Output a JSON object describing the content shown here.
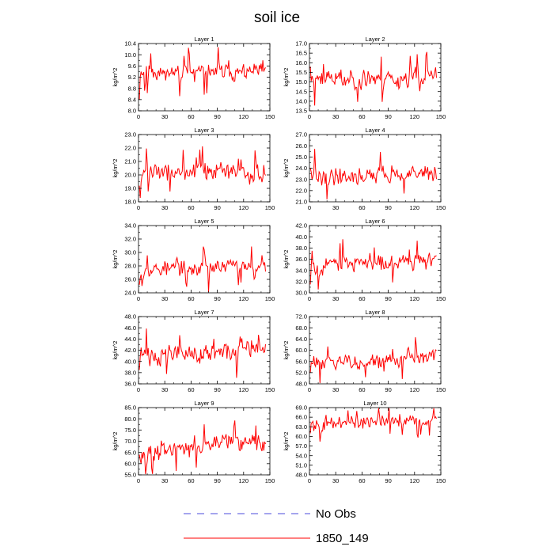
{
  "title": "soil ice",
  "colors": {
    "series": "#ff0000",
    "noobs": "#4b4bdc",
    "axis": "#000000"
  },
  "legend": {
    "entries": [
      {
        "label": "No Obs",
        "style": "dashed",
        "color": "#4b4bdc"
      },
      {
        "label": "1850_149",
        "style": "solid",
        "color": "#ff0000"
      }
    ]
  },
  "chart_data": [
    {
      "type": "line",
      "title": "Layer 1",
      "ylabel": "kg/m^2",
      "xlim": [
        0,
        150
      ],
      "xticks": [
        0,
        30,
        60,
        90,
        120,
        150
      ],
      "ylim": [
        8.0,
        10.4
      ],
      "yticks": [
        "8.0",
        "8.4",
        "8.8",
        "9.2",
        "9.6",
        "10.0",
        "10.4"
      ],
      "n": 145,
      "mean": 9.4,
      "amp": 0.45,
      "trend": 0.0,
      "seed": 11,
      "start": 8.4,
      "series": [
        {
          "name": "1850_149"
        }
      ]
    },
    {
      "type": "line",
      "title": "Layer 2",
      "ylabel": "kg/m^2",
      "xlim": [
        0,
        150
      ],
      "xticks": [
        0,
        30,
        60,
        90,
        120,
        150
      ],
      "ylim": [
        13.5,
        17.0
      ],
      "yticks": [
        "13.5",
        "14.0",
        "14.5",
        "15.0",
        "15.5",
        "16.0",
        "16.5",
        "17.0"
      ],
      "n": 145,
      "mean": 15.2,
      "amp": 0.75,
      "trend": 0.0,
      "seed": 23,
      "start": 15.8,
      "series": [
        {
          "name": "1850_149"
        }
      ]
    },
    {
      "type": "line",
      "title": "Layer 3",
      "ylabel": "kg/m^2",
      "xlim": [
        0,
        150
      ],
      "xticks": [
        0,
        30,
        60,
        90,
        120,
        150
      ],
      "ylim": [
        18.0,
        23.0
      ],
      "yticks": [
        "18.0",
        "19.0",
        "20.0",
        "21.0",
        "22.0",
        "23.0"
      ],
      "n": 145,
      "mean": 20.2,
      "amp": 1.0,
      "trend": 0.0,
      "seed": 37,
      "start": 19.2,
      "series": [
        {
          "name": "1850_149"
        }
      ]
    },
    {
      "type": "line",
      "title": "Layer 4",
      "ylabel": "kg/m^2",
      "xlim": [
        0,
        150
      ],
      "xticks": [
        0,
        30,
        60,
        90,
        120,
        150
      ],
      "ylim": [
        21.0,
        27.0
      ],
      "yticks": [
        "21.0",
        "22.0",
        "23.0",
        "24.0",
        "25.0",
        "26.0",
        "27.0"
      ],
      "n": 145,
      "mean": 23.4,
      "amp": 1.1,
      "trend": 0.4,
      "seed": 41,
      "start": 24.0,
      "series": [
        {
          "name": "1850_149"
        }
      ]
    },
    {
      "type": "line",
      "title": "Layer 5",
      "ylabel": "kg/m^2",
      "xlim": [
        0,
        150
      ],
      "xticks": [
        0,
        30,
        60,
        90,
        120,
        150
      ],
      "ylim": [
        24.0,
        34.0
      ],
      "yticks": [
        "24.0",
        "26.0",
        "28.0",
        "30.0",
        "32.0",
        "34.0"
      ],
      "n": 145,
      "mean": 27.8,
      "amp": 1.7,
      "trend": 0.8,
      "seed": 53,
      "start": 25.2,
      "series": [
        {
          "name": "1850_149"
        }
      ]
    },
    {
      "type": "line",
      "title": "Layer 6",
      "ylabel": "kg/m^2",
      "xlim": [
        0,
        150
      ],
      "xticks": [
        0,
        30,
        60,
        90,
        120,
        150
      ],
      "ylim": [
        30.0,
        42.0
      ],
      "yticks": [
        "30.0",
        "32.0",
        "34.0",
        "36.0",
        "38.0",
        "40.0",
        "42.0"
      ],
      "n": 145,
      "mean": 35.5,
      "amp": 2.3,
      "trend": 1.2,
      "seed": 67,
      "start": 31.5,
      "series": [
        {
          "name": "1850_149"
        }
      ]
    },
    {
      "type": "line",
      "title": "Layer 7",
      "ylabel": "kg/m^2",
      "xlim": [
        0,
        150
      ],
      "xticks": [
        0,
        30,
        60,
        90,
        120,
        150
      ],
      "ylim": [
        36.0,
        48.0
      ],
      "yticks": [
        "36.0",
        "38.0",
        "40.0",
        "42.0",
        "44.0",
        "46.0",
        "48.0"
      ],
      "n": 145,
      "mean": 41.5,
      "amp": 2.6,
      "trend": 1.0,
      "seed": 71,
      "start": 38.5,
      "series": [
        {
          "name": "1850_149"
        }
      ]
    },
    {
      "type": "line",
      "title": "Layer 8",
      "ylabel": "kg/m^2",
      "xlim": [
        0,
        150
      ],
      "xticks": [
        0,
        30,
        60,
        90,
        120,
        150
      ],
      "ylim": [
        48.0,
        72.0
      ],
      "yticks": [
        "48.0",
        "52.0",
        "56.0",
        "60.0",
        "64.0",
        "68.0",
        "72.0"
      ],
      "n": 145,
      "mean": 56.5,
      "amp": 4.0,
      "trend": 3.0,
      "seed": 83,
      "start": 52.0,
      "series": [
        {
          "name": "1850_149"
        }
      ]
    },
    {
      "type": "line",
      "title": "Layer 9",
      "ylabel": "kg/m^2",
      "xlim": [
        0,
        150
      ],
      "xticks": [
        0,
        30,
        60,
        90,
        120,
        150
      ],
      "ylim": [
        55.0,
        85.0
      ],
      "yticks": [
        "55.0",
        "60.0",
        "65.0",
        "70.0",
        "75.0",
        "80.0",
        "85.0"
      ],
      "n": 145,
      "mean": 67.5,
      "amp": 5.5,
      "trend": 5.0,
      "seed": 97,
      "start": 64.0,
      "series": [
        {
          "name": "1850_149"
        }
      ]
    },
    {
      "type": "line",
      "title": "Layer 10",
      "ylabel": "kg/m^2",
      "xlim": [
        0,
        150
      ],
      "xticks": [
        0,
        30,
        60,
        90,
        120,
        150
      ],
      "ylim": [
        48.0,
        69.0
      ],
      "yticks": [
        "48.0",
        "51.0",
        "54.0",
        "57.0",
        "60.0",
        "63.0",
        "66.0",
        "69.0"
      ],
      "n": 145,
      "mean": 64.5,
      "amp": 3.0,
      "trend": 1.5,
      "seed": 101,
      "start": 61.0,
      "series": [
        {
          "name": "1850_149"
        }
      ]
    }
  ]
}
